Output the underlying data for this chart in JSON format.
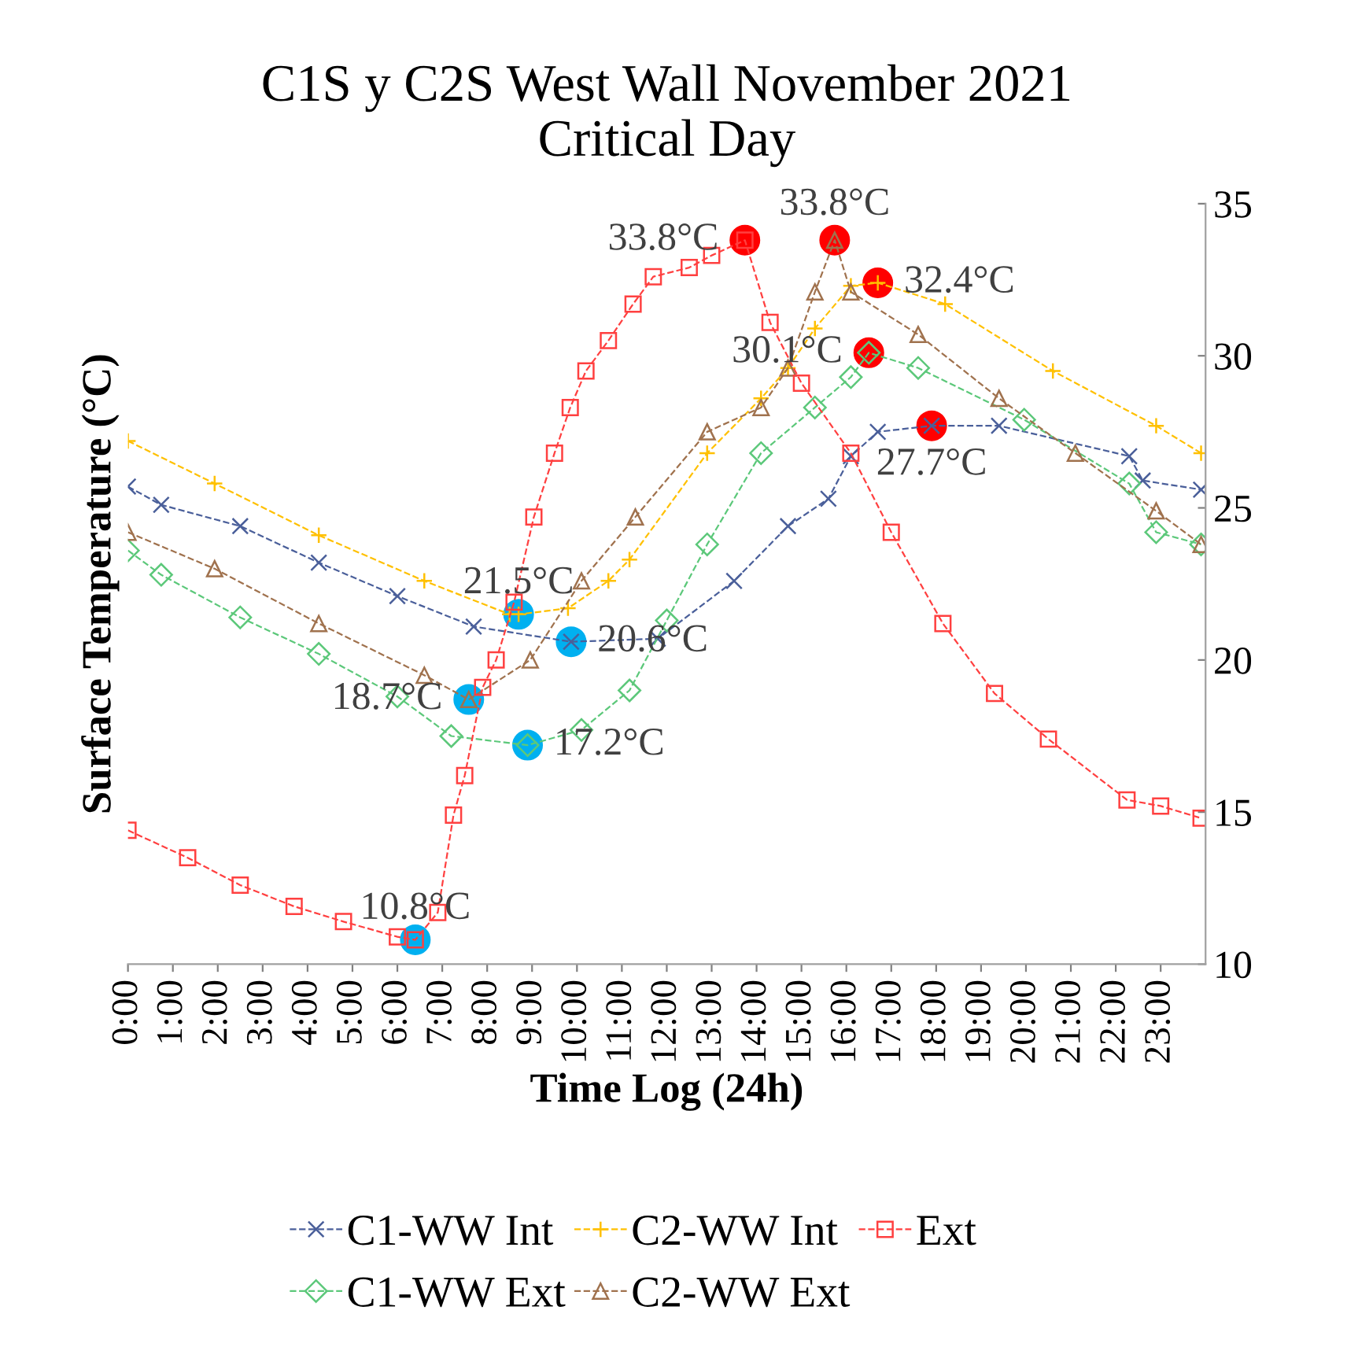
{
  "chart_data": {
    "type": "line",
    "title": "C1S y C2S West Wall November 2021\nCritical Day",
    "xlabel": "Time Log (24h)",
    "ylabel": "Surface Temperature (°C)",
    "xlim": [
      0,
      24
    ],
    "xticks": [
      {
        "value": 0,
        "label": "0:00"
      },
      {
        "value": 1,
        "label": "1:00"
      },
      {
        "value": 2,
        "label": "2:00"
      },
      {
        "value": 3,
        "label": "3:00"
      },
      {
        "value": 4,
        "label": "4:00"
      },
      {
        "value": 5,
        "label": "5:00"
      },
      {
        "value": 6,
        "label": "6:00"
      },
      {
        "value": 7,
        "label": "7:00"
      },
      {
        "value": 8,
        "label": "8:00"
      },
      {
        "value": 9,
        "label": "9:00"
      },
      {
        "value": 10,
        "label": "10:00"
      },
      {
        "value": 11,
        "label": "11:00"
      },
      {
        "value": 12,
        "label": "12:00"
      },
      {
        "value": 13,
        "label": "13:00"
      },
      {
        "value": 14,
        "label": "14:00"
      },
      {
        "value": 15,
        "label": "15:00"
      },
      {
        "value": 16,
        "label": "16:00"
      },
      {
        "value": 17,
        "label": "17:00"
      },
      {
        "value": 18,
        "label": "18:00"
      },
      {
        "value": 19,
        "label": "19:00"
      },
      {
        "value": 20,
        "label": "20:00"
      },
      {
        "value": 21,
        "label": "21:00"
      },
      {
        "value": 22,
        "label": "22:00"
      },
      {
        "value": 23,
        "label": "23:00"
      }
    ],
    "ylim": [
      10,
      35
    ],
    "yticks": [
      10,
      15,
      20,
      25,
      30,
      35
    ],
    "grid": false,
    "legend": "bottom",
    "line_style": "dashed",
    "series": [
      {
        "name": "C1-WW Int",
        "color": "#4a5f9a",
        "marker": "cross",
        "x": [
          0,
          0.74,
          2.5,
          4.25,
          6,
          7.7,
          9.87,
          11.8,
          13.5,
          14.7,
          15.6,
          16.1,
          16.7,
          17.9,
          19.4,
          22.3,
          22.6,
          23.9
        ],
        "values": [
          25.7,
          25.1,
          24.4,
          23.2,
          22.1,
          21.1,
          20.6,
          20.7,
          22.6,
          24.4,
          25.3,
          26.7,
          27.5,
          27.7,
          27.7,
          26.7,
          25.9,
          25.6
        ]
      },
      {
        "name": "C1-WW Ext",
        "color": "#5cc87a",
        "marker": "diamond",
        "x": [
          0,
          0.74,
          2.5,
          4.25,
          6,
          7.2,
          8.9,
          10.1,
          11.17,
          12.0,
          12.9,
          14.1,
          15.3,
          16.1,
          16.5,
          17.6,
          19.96,
          22.3,
          22.9,
          23.9
        ],
        "values": [
          23.6,
          22.8,
          21.4,
          20.2,
          18.8,
          17.5,
          17.2,
          17.7,
          19.0,
          21.3,
          23.8,
          26.8,
          28.3,
          29.3,
          30.1,
          29.6,
          27.9,
          25.8,
          24.2,
          23.8
        ]
      },
      {
        "name": "C2-WW Int",
        "color": "#ffc000",
        "marker": "plus",
        "x": [
          0,
          1.93,
          4.25,
          6.6,
          8.5,
          8.7,
          9.8,
          10.7,
          11.17,
          12.9,
          14.1,
          14.7,
          15.3,
          16.1,
          16.7,
          18.2,
          20.6,
          22.9,
          23.9
        ],
        "values": [
          27.2,
          25.8,
          24.1,
          22.6,
          21.5,
          21.5,
          21.7,
          22.6,
          23.3,
          26.8,
          28.6,
          29.6,
          30.9,
          32.3,
          32.4,
          31.7,
          29.5,
          27.7,
          26.8
        ]
      },
      {
        "name": "C2-WW Ext",
        "color": "#a0724e",
        "marker": "triangle",
        "x": [
          0,
          1.93,
          4.25,
          6.6,
          7.59,
          8.96,
          10.1,
          11.3,
          12.9,
          14.1,
          14.7,
          15.3,
          15.74,
          16.1,
          17.6,
          19.4,
          21.1,
          22.9,
          23.9
        ],
        "values": [
          24.2,
          23.0,
          21.2,
          19.5,
          18.7,
          20.0,
          22.6,
          24.7,
          27.5,
          28.3,
          29.6,
          32.1,
          33.8,
          32.1,
          30.7,
          28.6,
          26.8,
          24.9,
          23.8
        ]
      },
      {
        "name": "Ext",
        "color": "#ff4040",
        "marker": "square",
        "x": [
          0,
          1.33,
          2.5,
          3.7,
          4.8,
          6.0,
          6.4,
          6.9,
          7.25,
          7.5,
          7.9,
          8.2,
          8.6,
          9.04,
          9.5,
          9.85,
          10.2,
          10.7,
          11.25,
          11.7,
          12.5,
          13.0,
          13.74,
          14.3,
          15.0,
          16.1,
          17.0,
          18.15,
          19.3,
          20.5,
          22.25,
          23.0,
          23.9
        ],
        "values": [
          14.4,
          13.5,
          12.6,
          11.9,
          11.4,
          10.9,
          10.8,
          11.7,
          14.9,
          16.2,
          19.1,
          20.0,
          21.9,
          24.7,
          26.8,
          28.3,
          29.5,
          30.5,
          31.7,
          32.6,
          32.9,
          33.3,
          33.8,
          31.1,
          29.1,
          26.8,
          24.2,
          21.2,
          18.9,
          17.4,
          15.4,
          15.2,
          14.8
        ]
      },
      {
        "type": "scatter",
        "color": "#00b0f0",
        "marker": "circle",
        "x": [
          6.4,
          7.59,
          8.7,
          8.9,
          9.87
        ],
        "values": [
          10.8,
          18.7,
          21.5,
          17.2,
          20.6
        ]
      },
      {
        "type": "scatter",
        "color": "#ff0000",
        "marker": "circle",
        "x": [
          13.74,
          15.74,
          16.5,
          16.7,
          17.9
        ],
        "values": [
          33.8,
          33.8,
          30.1,
          32.4,
          27.7
        ]
      }
    ],
    "annotations": [
      {
        "text": "10.8°C",
        "x": 6.4,
        "y": 10.8
      },
      {
        "text": "18.7°C",
        "x": 7.59,
        "y": 18.7
      },
      {
        "text": "21.5°C",
        "x": 8.7,
        "y": 21.5
      },
      {
        "text": "17.2°C",
        "x": 8.9,
        "y": 17.2
      },
      {
        "text": "20.6°C",
        "x": 9.87,
        "y": 20.6
      },
      {
        "text": "33.8°C",
        "x": 13.74,
        "y": 33.8
      },
      {
        "text": "33.8°C",
        "x": 15.74,
        "y": 33.8
      },
      {
        "text": "30.1°C",
        "x": 16.5,
        "y": 30.1
      },
      {
        "text": "32.4°C",
        "x": 16.7,
        "y": 32.4
      },
      {
        "text": "27.7°C",
        "x": 17.9,
        "y": 27.7
      }
    ]
  }
}
